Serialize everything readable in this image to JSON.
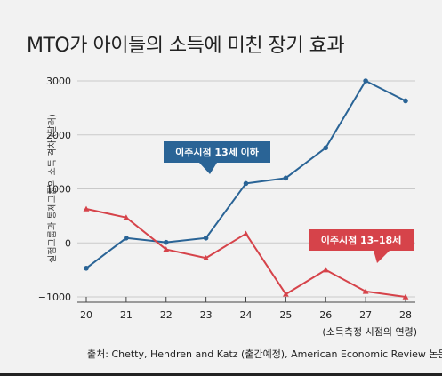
{
  "title": "MTO가 아이들의 소득에 미친 장기 효과",
  "source": "출처: Chetty, Hendren and Katz (출간예정), American Economic Review 논문",
  "colors": {
    "blue": "#2a6496",
    "red": "#d6434a",
    "background": "#f2f2f2"
  },
  "chart_data": {
    "type": "line",
    "x": [
      20,
      21,
      22,
      23,
      24,
      25,
      26,
      27,
      28
    ],
    "xlabel": "(소득측정 시점의 연령)",
    "ylabel": "실험그룹과 통제그룹의 소득 격차 (달러)",
    "ylim": [
      -1000,
      3000
    ],
    "yticks": [
      -1000,
      0,
      1000,
      2000,
      3000
    ],
    "ytick_labels": [
      "−1000",
      "0",
      "1000",
      "2000",
      "3000"
    ],
    "grid": true,
    "series": [
      {
        "name": "이주시점 13세 이하",
        "color": "#2a6496",
        "marker": "circle",
        "values": [
          -470,
          90,
          10,
          90,
          1100,
          1200,
          1760,
          3000,
          2630
        ]
      },
      {
        "name": "이주시점 13–18세",
        "color": "#d6434a",
        "marker": "triangle",
        "values": [
          630,
          470,
          -120,
          -280,
          170,
          -950,
          -500,
          -900,
          -1000
        ]
      }
    ]
  }
}
